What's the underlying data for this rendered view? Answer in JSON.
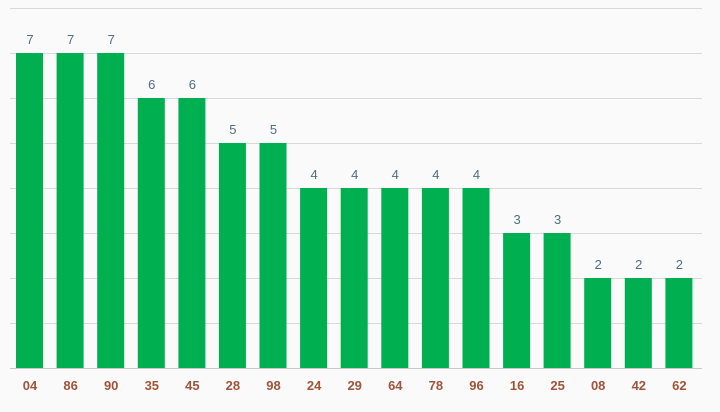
{
  "chart_data": {
    "type": "bar",
    "title": "",
    "xlabel": "",
    "ylabel": "",
    "categories": [
      "04",
      "86",
      "90",
      "35",
      "45",
      "28",
      "98",
      "24",
      "29",
      "64",
      "78",
      "96",
      "16",
      "25",
      "08",
      "42",
      "62"
    ],
    "values": [
      7,
      7,
      7,
      6,
      6,
      5,
      5,
      4,
      4,
      4,
      4,
      4,
      3,
      3,
      2,
      2,
      2
    ],
    "ylim": [
      0,
      8
    ],
    "grid": true,
    "legend": "none",
    "colors": {
      "bar": "#00b050",
      "grid": "#d9d9d9",
      "value_label": "#4f6f7f",
      "tick_label": "#a0543a",
      "background": "#fafafa"
    }
  }
}
